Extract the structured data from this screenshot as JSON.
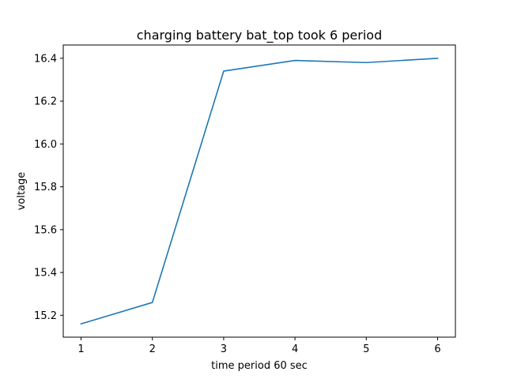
{
  "chart_data": {
    "type": "line",
    "title": "charging battery bat_top took 6 period",
    "xlabel": "time period 60 sec",
    "ylabel": "voltage",
    "x": [
      1,
      2,
      3,
      4,
      5,
      6
    ],
    "series": [
      {
        "values": [
          15.16,
          15.26,
          16.34,
          16.39,
          16.38,
          16.4
        ]
      }
    ],
    "xlim": [
      0.75,
      6.25
    ],
    "ylim": [
      15.098,
      16.462
    ],
    "xticks": [
      1,
      2,
      3,
      4,
      5,
      6
    ],
    "xtick_labels": [
      "1",
      "2",
      "3",
      "4",
      "5",
      "6"
    ],
    "yticks": [
      15.2,
      15.4,
      15.6,
      15.8,
      16.0,
      16.2,
      16.4
    ],
    "ytick_labels": [
      "15.2",
      "15.4",
      "15.6",
      "15.8",
      "16.0",
      "16.2",
      "16.4"
    ],
    "grid": false,
    "line_color": "#1f77b4"
  }
}
